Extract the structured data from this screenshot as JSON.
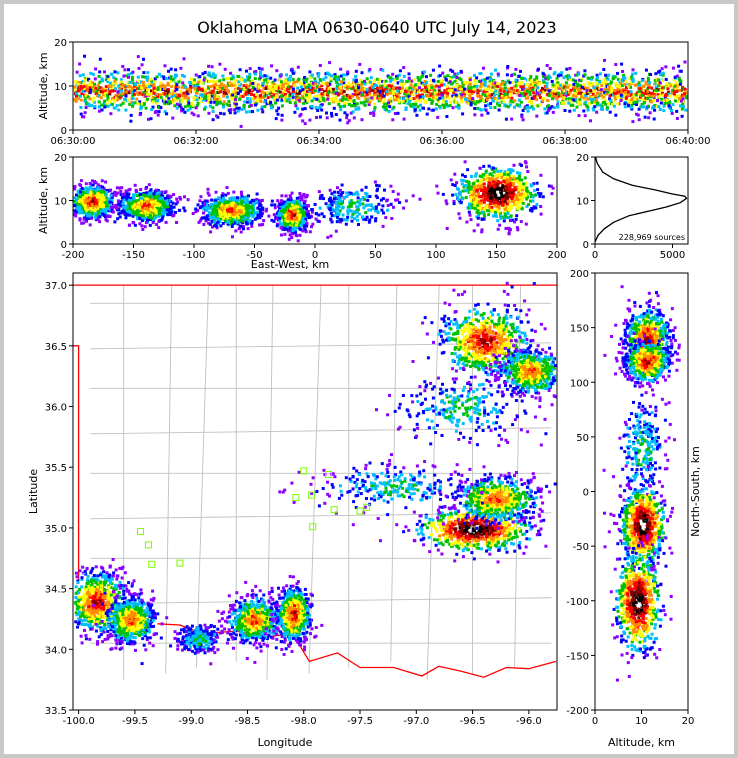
{
  "figure": {
    "title": "Oklahoma LMA 0630-0640 UTC July 14, 2023",
    "colors": {
      "background": "#ffffff",
      "border": "#c8c8c8",
      "state_line": "#ff0000",
      "county_line": "#c0c0c0",
      "station_marker": "#7cfc00",
      "density_palette": [
        "#8b00ff",
        "#0000ff",
        "#00bfff",
        "#00c000",
        "#ffff00",
        "#ff8c00",
        "#ff0000",
        "#800000",
        "#000000",
        "#ffffff"
      ]
    }
  },
  "chart_data": [
    {
      "id": "time-height",
      "type": "heatmap",
      "xlabel": "",
      "ylabel": "Altitude, km",
      "xlim": [
        "06:30:00",
        "06:40:00"
      ],
      "ylim": [
        0,
        20
      ],
      "xticks": [
        "06:30:00",
        "06:32:00",
        "06:34:00",
        "06:36:00",
        "06:38:00",
        "06:40:00"
      ],
      "yticks": [
        0,
        10,
        20
      ],
      "clusters": [
        {
          "x_range": [
            "06:30:00",
            "06:40:00"
          ],
          "alt_center_km": 9,
          "alt_spread_km": 4,
          "intensity": "high"
        }
      ]
    },
    {
      "id": "east-west-altitude",
      "type": "heatmap",
      "xlabel": "East-West, km",
      "ylabel": "Altitude, km",
      "xlim": [
        -200,
        200
      ],
      "ylim": [
        0,
        20
      ],
      "xticks": [
        -200,
        -150,
        -100,
        -50,
        0,
        50,
        100,
        150,
        200
      ],
      "yticks": [
        0,
        10,
        20
      ],
      "clusters": [
        {
          "x_km": -185,
          "x_spread_km": 14,
          "alt_km": 10,
          "alt_spread_km": 3,
          "intensity": "high"
        },
        {
          "x_km": -140,
          "x_spread_km": 18,
          "alt_km": 9,
          "alt_spread_km": 3,
          "intensity": "medium"
        },
        {
          "x_km": -70,
          "x_spread_km": 20,
          "alt_km": 8,
          "alt_spread_km": 3,
          "intensity": "medium"
        },
        {
          "x_km": -20,
          "x_spread_km": 10,
          "alt_km": 7,
          "alt_spread_km": 3,
          "intensity": "high"
        },
        {
          "x_km": 30,
          "x_spread_km": 30,
          "alt_km": 9,
          "alt_spread_km": 4,
          "intensity": "low"
        },
        {
          "x_km": 150,
          "x_spread_km": 28,
          "alt_km": 12,
          "alt_spread_km": 5,
          "intensity": "very-high"
        }
      ]
    },
    {
      "id": "altitude-histogram",
      "type": "line",
      "xlabel": "",
      "ylabel": "",
      "xlim": [
        0,
        6000
      ],
      "ylim": [
        0,
        20
      ],
      "xticks": [
        0,
        5000
      ],
      "yticks": [
        0,
        10,
        20
      ],
      "annotation": "228,969 sources",
      "x": [
        0,
        200,
        600,
        1200,
        2200,
        3400,
        4600,
        5500,
        5900,
        5800,
        5000,
        3800,
        2400,
        1200,
        500,
        150,
        30
      ],
      "y": [
        0.5,
        2,
        3.5,
        5,
        6.5,
        7.5,
        8.5,
        9.5,
        10.5,
        11,
        11.5,
        12.5,
        13.5,
        15,
        16.5,
        18.5,
        20
      ]
    },
    {
      "id": "plan-view",
      "type": "heatmap",
      "xlabel": "Longitude",
      "ylabel": "Latitude",
      "xlim": [
        -100.05,
        -95.75
      ],
      "ylim": [
        33.5,
        37.1
      ],
      "xticks": [
        -100.0,
        -99.5,
        -99.0,
        -98.5,
        -98.0,
        -97.5,
        -97.0,
        -96.5,
        -96.0
      ],
      "yticks": [
        33.5,
        34.0,
        34.5,
        35.0,
        35.5,
        36.0,
        36.5,
        37.0
      ],
      "clusters": [
        {
          "lon": -99.85,
          "lat": 34.4,
          "lon_spread": 0.14,
          "lat_spread": 0.14,
          "intensity": "high"
        },
        {
          "lon": -99.55,
          "lat": 34.25,
          "lon_spread": 0.12,
          "lat_spread": 0.1,
          "intensity": "medium"
        },
        {
          "lon": -98.95,
          "lat": 34.1,
          "lon_spread": 0.1,
          "lat_spread": 0.06,
          "intensity": "low"
        },
        {
          "lon": -98.45,
          "lat": 34.25,
          "lon_spread": 0.12,
          "lat_spread": 0.1,
          "intensity": "medium"
        },
        {
          "lon": -98.1,
          "lat": 34.3,
          "lon_spread": 0.08,
          "lat_spread": 0.12,
          "intensity": "high"
        },
        {
          "lon": -96.5,
          "lat": 35.0,
          "lon_spread": 0.28,
          "lat_spread": 0.1,
          "intensity": "very-high"
        },
        {
          "lon": -96.3,
          "lat": 35.25,
          "lon_spread": 0.2,
          "lat_spread": 0.1,
          "intensity": "medium"
        },
        {
          "lon": -97.2,
          "lat": 35.35,
          "lon_spread": 0.35,
          "lat_spread": 0.1,
          "intensity": "low"
        },
        {
          "lon": -96.4,
          "lat": 36.55,
          "lon_spread": 0.22,
          "lat_spread": 0.16,
          "intensity": "high"
        },
        {
          "lon": -96.0,
          "lat": 36.3,
          "lon_spread": 0.15,
          "lat_spread": 0.1,
          "intensity": "medium"
        },
        {
          "lon": -96.6,
          "lat": 36.0,
          "lon_spread": 0.3,
          "lat_spread": 0.15,
          "intensity": "low"
        }
      ],
      "stations": [
        {
          "lon": -99.45,
          "lat": 34.97
        },
        {
          "lon": -99.38,
          "lat": 34.86
        },
        {
          "lon": -99.35,
          "lat": 34.7
        },
        {
          "lon": -99.1,
          "lat": 34.71
        },
        {
          "lon": -98.0,
          "lat": 35.47
        },
        {
          "lon": -98.07,
          "lat": 35.25
        },
        {
          "lon": -97.93,
          "lat": 35.27
        },
        {
          "lon": -97.78,
          "lat": 35.44
        },
        {
          "lon": -97.73,
          "lat": 35.15
        },
        {
          "lon": -97.92,
          "lat": 35.01
        },
        {
          "lon": -97.5,
          "lat": 35.14
        },
        {
          "lon": -97.44,
          "lat": 35.17
        }
      ]
    },
    {
      "id": "altitude-north-south",
      "type": "heatmap",
      "xlabel": "Altitude, km",
      "ylabel": "North-South, km",
      "xlim": [
        0,
        20
      ],
      "ylim": [
        -200,
        200
      ],
      "xticks": [
        0,
        10,
        20
      ],
      "yticks": [
        -200,
        -150,
        -100,
        -50,
        0,
        50,
        100,
        150,
        200
      ],
      "clusters": [
        {
          "alt_km": 11,
          "ns_km": 140,
          "alt_spread_km": 4,
          "ns_spread_km": 16,
          "intensity": "high"
        },
        {
          "alt_km": 11,
          "ns_km": 120,
          "alt_spread_km": 4,
          "ns_spread_km": 10,
          "intensity": "high"
        },
        {
          "alt_km": 10,
          "ns_km": 40,
          "alt_spread_km": 4,
          "ns_spread_km": 25,
          "intensity": "low"
        },
        {
          "alt_km": 10,
          "ns_km": -30,
          "alt_spread_km": 4,
          "ns_spread_km": 20,
          "intensity": "very-high"
        },
        {
          "alt_km": 9,
          "ns_km": -100,
          "alt_spread_km": 4,
          "ns_spread_km": 25,
          "intensity": "very-high"
        }
      ]
    }
  ]
}
